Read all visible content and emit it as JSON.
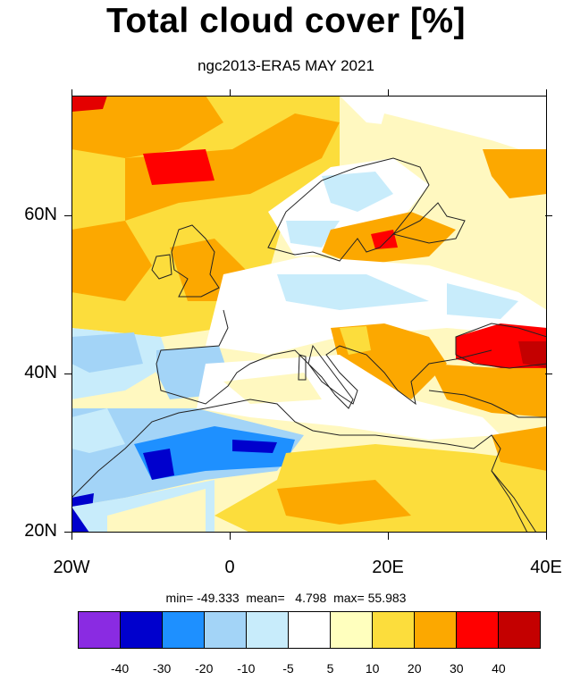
{
  "title": "Total cloud cover [%]",
  "subtitle": "ngc2013-ERA5 MAY 2021",
  "stats": {
    "text": "min= -49.333  mean=   4.798  max= 55.983",
    "min": -49.333,
    "mean": 4.798,
    "max": 55.983
  },
  "map": {
    "projection": "cylindrical-equidistant",
    "lon_range": [
      -20,
      40
    ],
    "lat_range": [
      20,
      75
    ],
    "lon_ticks": [
      "20W",
      "0",
      "20E",
      "40E"
    ],
    "lat_ticks": [
      "20N",
      "40N",
      "60N"
    ],
    "anomaly_regions": [
      {
        "name": "north-atlantic",
        "category": "10-20",
        "color": "#fcdd3c"
      },
      {
        "name": "iceland-sea",
        "category": "20-30",
        "color": "#fca800"
      },
      {
        "name": "black-sea",
        "category": ">40",
        "color": "#e40000"
      },
      {
        "name": "scandinavia",
        "category": "-10 to -5",
        "color": "#c8ecfb"
      },
      {
        "name": "iberia",
        "category": "-20 to -10",
        "color": "#a3d4f7"
      },
      {
        "name": "morocco-coast",
        "category": "-30 to -20",
        "color": "#1e90ff"
      },
      {
        "name": "mediterranean",
        "category": "-5 to 5",
        "color": "#ffffff"
      },
      {
        "name": "north-africa",
        "category": "10-20",
        "color": "#fcdd3c"
      }
    ]
  },
  "colorbar": {
    "colors": [
      "#8a2be2",
      "#0000cd",
      "#1e90ff",
      "#a3d4f7",
      "#c8ecfb",
      "#ffffff",
      "#ffffbe",
      "#fcdd3c",
      "#fca800",
      "#ff0000",
      "#c40000"
    ],
    "labels": [
      "-40",
      "-30",
      "-20",
      "-10",
      "-5",
      "5",
      "10",
      "20",
      "30",
      "40"
    ]
  }
}
